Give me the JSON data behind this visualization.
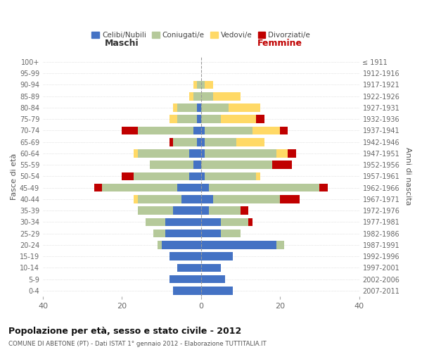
{
  "age_groups": [
    "0-4",
    "5-9",
    "10-14",
    "15-19",
    "20-24",
    "25-29",
    "30-34",
    "35-39",
    "40-44",
    "45-49",
    "50-54",
    "55-59",
    "60-64",
    "65-69",
    "70-74",
    "75-79",
    "80-84",
    "85-89",
    "90-94",
    "95-99",
    "100+"
  ],
  "birth_years": [
    "2007-2011",
    "2002-2006",
    "1997-2001",
    "1992-1996",
    "1987-1991",
    "1982-1986",
    "1977-1981",
    "1972-1976",
    "1967-1971",
    "1962-1966",
    "1957-1961",
    "1952-1956",
    "1947-1951",
    "1942-1946",
    "1937-1941",
    "1932-1936",
    "1927-1931",
    "1922-1926",
    "1917-1921",
    "1912-1916",
    "≤ 1911"
  ],
  "maschi": {
    "celibi": [
      7,
      8,
      6,
      8,
      10,
      9,
      9,
      7,
      5,
      6,
      3,
      2,
      3,
      1,
      2,
      1,
      1,
      0,
      0,
      0,
      0
    ],
    "coniugati": [
      0,
      0,
      0,
      0,
      1,
      3,
      5,
      9,
      11,
      19,
      14,
      11,
      13,
      6,
      14,
      5,
      5,
      2,
      1,
      0,
      0
    ],
    "vedovi": [
      0,
      0,
      0,
      0,
      0,
      0,
      0,
      0,
      1,
      0,
      0,
      0,
      1,
      0,
      0,
      2,
      1,
      1,
      1,
      0,
      0
    ],
    "divorziati": [
      0,
      0,
      0,
      0,
      0,
      0,
      0,
      0,
      0,
      2,
      3,
      0,
      0,
      1,
      4,
      0,
      0,
      0,
      0,
      0,
      0
    ]
  },
  "femmine": {
    "nubili": [
      8,
      6,
      5,
      8,
      19,
      5,
      5,
      2,
      3,
      2,
      1,
      0,
      1,
      1,
      1,
      0,
      0,
      0,
      0,
      0,
      0
    ],
    "coniugate": [
      0,
      0,
      0,
      0,
      2,
      5,
      7,
      8,
      17,
      28,
      13,
      18,
      18,
      8,
      12,
      5,
      7,
      3,
      1,
      0,
      0
    ],
    "vedove": [
      0,
      0,
      0,
      0,
      0,
      0,
      0,
      0,
      0,
      0,
      1,
      0,
      3,
      7,
      7,
      9,
      8,
      7,
      2,
      0,
      0
    ],
    "divorziate": [
      0,
      0,
      0,
      0,
      0,
      0,
      1,
      2,
      5,
      2,
      0,
      5,
      2,
      0,
      2,
      2,
      0,
      0,
      0,
      0,
      0
    ]
  },
  "colors": {
    "celibi": "#4472c4",
    "coniugati": "#b5c99a",
    "vedovi": "#ffd966",
    "divorziati": "#c00000"
  },
  "xlim": 40,
  "title": "Popolazione per età, sesso e stato civile - 2012",
  "subtitle": "COMUNE DI ABETONE (PT) - Dati ISTAT 1° gennaio 2012 - Elaborazione TUTTITALIA.IT",
  "xlabel_left": "Maschi",
  "xlabel_right": "Femmine",
  "ylabel": "Fasce di età",
  "ylabel_right": "Anni di nascita",
  "legend_labels": [
    "Celibi/Nubili",
    "Coniugati/e",
    "Vedovi/e",
    "Divorziati/e"
  ],
  "bg_color": "#ffffff",
  "grid_color": "#cccccc"
}
